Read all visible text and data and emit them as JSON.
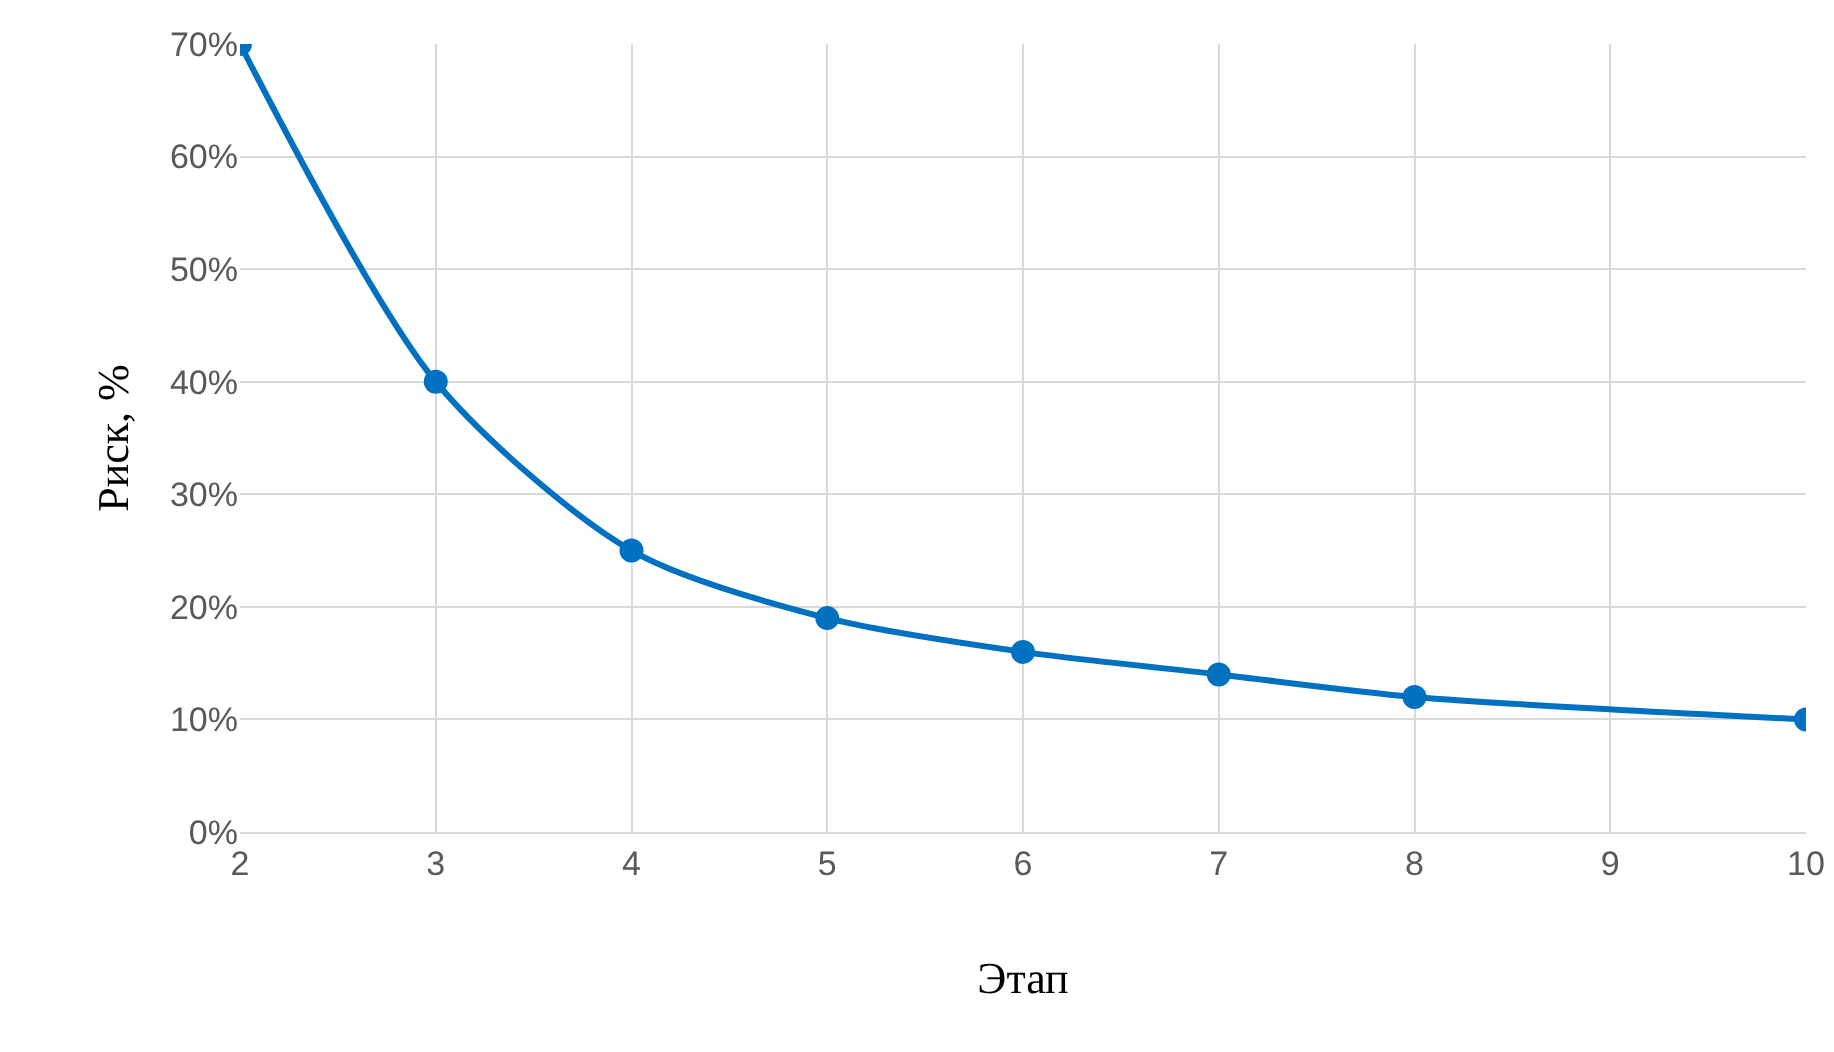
{
  "chart_data": {
    "type": "line",
    "xlabel": "Этап",
    "ylabel": "Риск, %",
    "x": [
      2,
      3,
      4,
      5,
      6,
      7,
      8,
      10
    ],
    "series": [
      {
        "color": "#0070c0",
        "values": [
          70,
          40,
          25,
          19,
          16,
          14,
          12,
          10
        ]
      }
    ],
    "xlim": [
      2,
      10
    ],
    "xticks": [
      2,
      3,
      4,
      5,
      6,
      7,
      8,
      9,
      10
    ],
    "ylim": [
      0,
      70
    ],
    "yticks": [
      {
        "value": 0,
        "label": "0%"
      },
      {
        "value": 10,
        "label": "10%"
      },
      {
        "value": 20,
        "label": "20%"
      },
      {
        "value": 30,
        "label": "30%"
      },
      {
        "value": 40,
        "label": "40%"
      },
      {
        "value": 50,
        "label": "50%"
      },
      {
        "value": 60,
        "label": "60%"
      },
      {
        "value": 70,
        "label": "70%"
      }
    ],
    "grid": true,
    "marker": "circle",
    "line_style": "solid",
    "legend": false
  }
}
